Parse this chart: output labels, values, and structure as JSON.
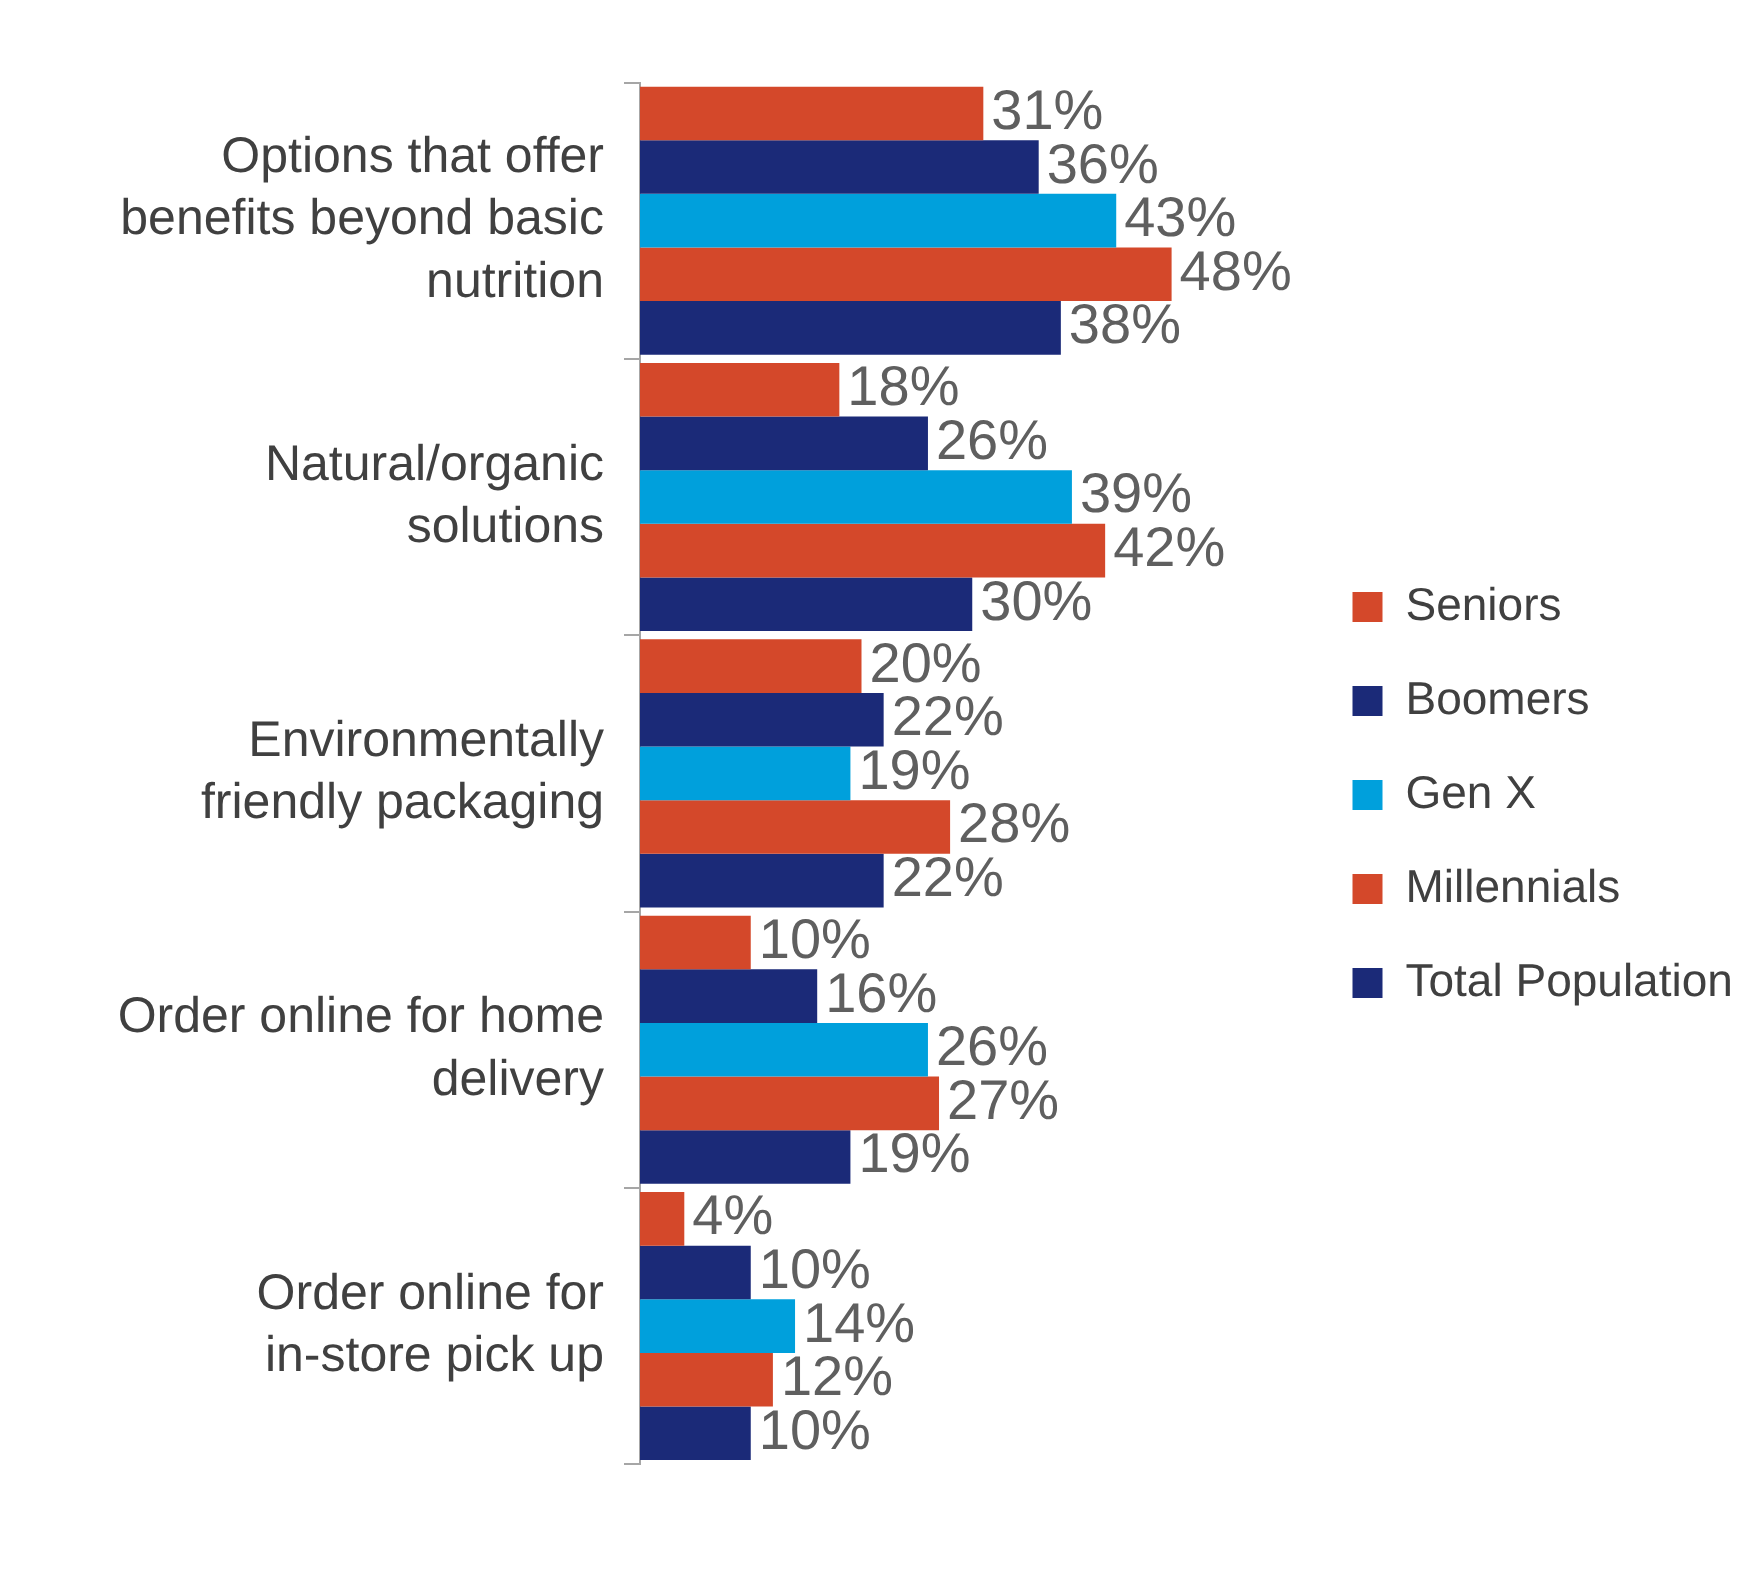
{
  "chart_data": {
    "type": "bar",
    "orientation": "horizontal",
    "categories": [
      "Options that offer benefits beyond basic nutrition",
      "Natural/organic solutions",
      "Environmentally friendly packaging",
      "Order online for home delivery",
      "Order online for in-store pick up"
    ],
    "series": [
      {
        "name": "Seniors",
        "color": "#d4482a",
        "values": [
          31,
          18,
          20,
          10,
          4
        ],
        "value_labels": [
          "31%",
          "18%",
          "20%",
          "10%",
          "4%"
        ]
      },
      {
        "name": "Boomers",
        "color": "#1b2a78",
        "values": [
          36,
          26,
          22,
          16,
          10
        ],
        "value_labels": [
          "36%",
          "26%",
          "22%",
          "16%",
          "10%"
        ]
      },
      {
        "name": "Gen X",
        "color": "#00a0dc",
        "values": [
          43,
          39,
          19,
          26,
          14
        ],
        "value_labels": [
          "43%",
          "39%",
          "19%",
          "26%",
          "14%"
        ]
      },
      {
        "name": "Millennials",
        "color": "#d4482a",
        "values": [
          48,
          42,
          28,
          27,
          12
        ],
        "value_labels": [
          "48%",
          "42%",
          "28%",
          "27%",
          "12%"
        ]
      },
      {
        "name": "Total Population",
        "color": "#1b2a78",
        "values": [
          38,
          30,
          22,
          19,
          10
        ],
        "value_labels": [
          "38%",
          "30%",
          "22%",
          "19%",
          "10%"
        ]
      }
    ],
    "legend": "right",
    "tick_labels": "y"
  }
}
